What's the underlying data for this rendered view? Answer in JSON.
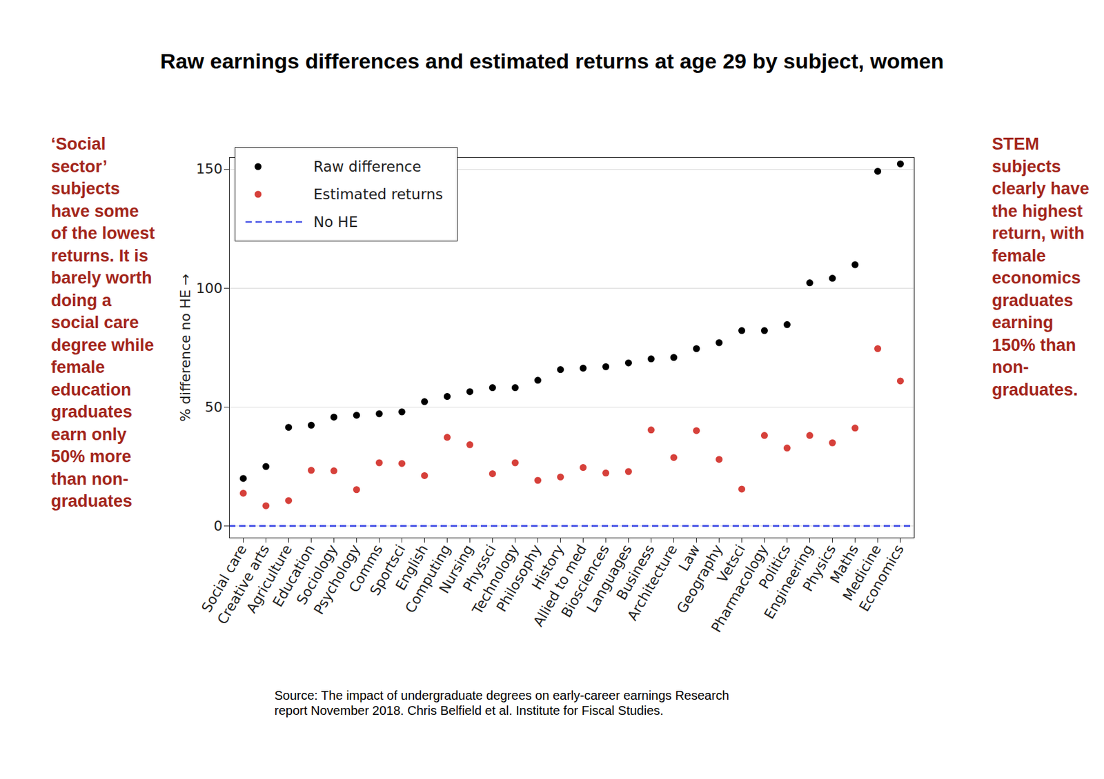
{
  "chart_data": {
    "type": "scatter",
    "title": "Raw earnings differences and estimated returns at age 29 by subject, women",
    "categories": [
      "Social care",
      "Creative arts",
      "Agriculture",
      "Education",
      "Sociology",
      "Psychology",
      "Comms",
      "Sportsci",
      "English",
      "Computing",
      "Nursing",
      "Physsci",
      "Technology",
      "Philosophy",
      "History",
      "Allied to med",
      "Biosciences",
      "Languages",
      "Business",
      "Architecture",
      "Law",
      "Geography",
      "Vetsci",
      "Pharmacology",
      "Politics",
      "Engineering",
      "Physics",
      "Maths",
      "Medicine",
      "Economics"
    ],
    "series": [
      {
        "name": "Raw difference",
        "color": "#000000",
        "marker": "circle",
        "values": [
          20,
          25,
          41.5,
          42.4,
          45.8,
          46.6,
          47.2,
          48,
          52.3,
          54.5,
          56.5,
          58.2,
          58.2,
          61.3,
          65.8,
          66.4,
          67,
          68.6,
          70.3,
          70.9,
          74.6,
          77.1,
          82.2,
          82.2,
          84.7,
          102.3,
          104.2,
          109.9,
          149.2,
          152.3
        ]
      },
      {
        "name": "Estimated returns",
        "color": "#d6403a",
        "marker": "circle",
        "values": [
          13.8,
          8.5,
          10.7,
          23.4,
          23.2,
          15.3,
          26.6,
          26.3,
          21.2,
          37.3,
          34.2,
          22,
          26.6,
          19.2,
          20.6,
          24.6,
          22.3,
          22.9,
          40.4,
          28.8,
          40.1,
          28,
          15.5,
          38.1,
          32.8,
          38.1,
          35,
          41.2,
          74.6,
          61
        ]
      },
      {
        "name": "No HE",
        "color": "#4a55e6",
        "type": "line",
        "line_style": "dashed",
        "values": [
          0,
          0,
          0,
          0,
          0,
          0,
          0,
          0,
          0,
          0,
          0,
          0,
          0,
          0,
          0,
          0,
          0,
          0,
          0,
          0,
          0,
          0,
          0,
          0,
          0,
          0,
          0,
          0,
          0,
          0
        ]
      }
    ],
    "ylabel": "% difference no HE",
    "ylim": [
      -5,
      155
    ],
    "yticks": [
      0,
      50,
      100,
      150
    ],
    "grid": true,
    "legend": "upper left",
    "annotations": [
      "‘Social sector’ subjects have some of the lowest returns. It is barely worth doing a social care degree while female education graduates earn only 50% more than non-graduates",
      "STEM subjects clearly have the highest return, with female economics graduates earning 150% than non-graduates."
    ],
    "caption": "Source: The impact of undergraduate degrees on early-career earnings Research report November 2018. Chris Belfield et al. Institute for Fiscal Studies."
  }
}
